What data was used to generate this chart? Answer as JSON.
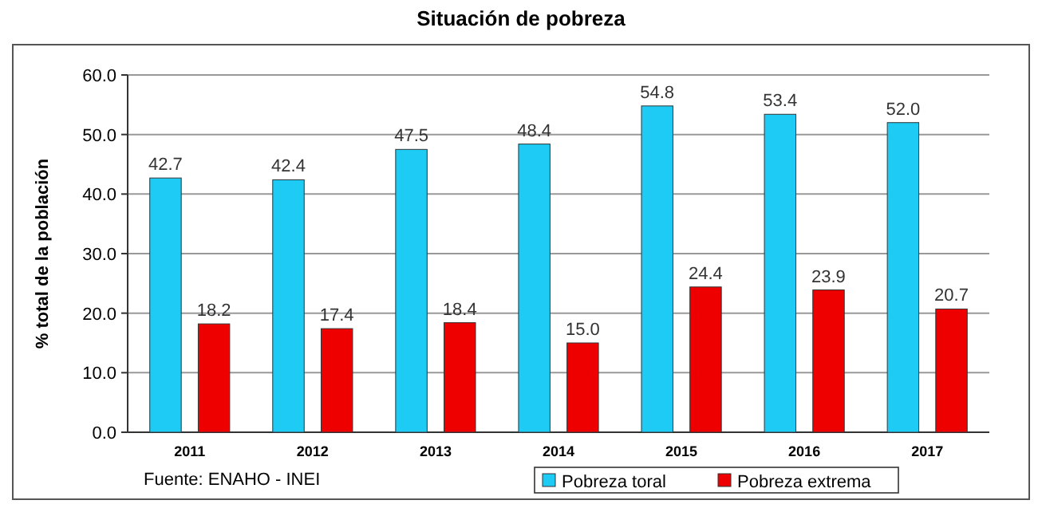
{
  "chart_data": {
    "type": "bar",
    "title": "Situación de pobreza",
    "ylabel": "% total de la población",
    "categories": [
      "2011",
      "2012",
      "2013",
      "2014",
      "2015",
      "2016",
      "2017"
    ],
    "series": [
      {
        "name": "Pobreza toral",
        "color": "#1ecbf5",
        "values": [
          42.7,
          42.4,
          47.5,
          48.4,
          54.8,
          53.4,
          52.0
        ],
        "value_labels": [
          "42.7",
          "42.4",
          "47.5",
          "48.4",
          "54.8",
          "53.4",
          "52.0"
        ]
      },
      {
        "name": "Pobreza extrema",
        "color": "#ee0000",
        "values": [
          18.2,
          17.4,
          18.4,
          15.0,
          24.4,
          23.9,
          20.7
        ],
        "value_labels": [
          "18.2",
          "17.4",
          "18.4",
          "15.0",
          "24.4",
          "23.9",
          "20.7"
        ]
      }
    ],
    "ylim": [
      0,
      60
    ],
    "yticks": [
      {
        "value": 0,
        "label": "0.0"
      },
      {
        "value": 10,
        "label": "10.0"
      },
      {
        "value": 20,
        "label": "20.0"
      },
      {
        "value": 30,
        "label": "30.0"
      },
      {
        "value": 40,
        "label": "40.0"
      },
      {
        "value": 50,
        "label": "50.0"
      },
      {
        "value": 60,
        "label": "60.0"
      }
    ],
    "grid": "y",
    "legend": "bottom right",
    "annotations": [
      "Fuente: ENAHO - INEI"
    ]
  }
}
